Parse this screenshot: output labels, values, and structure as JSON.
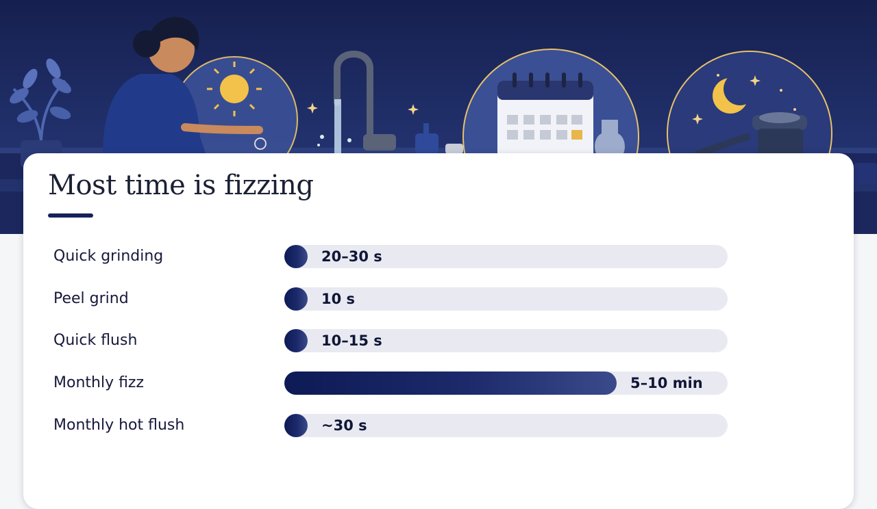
{
  "chart_data": {
    "type": "bar",
    "orientation": "horizontal",
    "title": "Most time is fizzing",
    "unit": "seconds",
    "categories": [
      "Quick grinding",
      "Peel grind",
      "Quick flush",
      "Monthly fizz",
      "Monthly hot flush"
    ],
    "values": [
      25,
      10,
      12.5,
      450,
      30
    ],
    "value_labels": [
      "20–30 s",
      "10 s",
      "10–15 s",
      "5–10 min",
      "~30 s"
    ],
    "xlim": [
      0,
      600
    ],
    "grid": false,
    "legend": "none",
    "colors": {
      "bar": "#16215a",
      "track": "#e9eaf1",
      "text": "#16193a"
    }
  },
  "banner": {
    "icons": [
      "person-washing-icon",
      "plant-icon",
      "sun-icon",
      "faucet-icon",
      "calendar-icon",
      "moon-icon",
      "disposal-unit-icon"
    ]
  }
}
